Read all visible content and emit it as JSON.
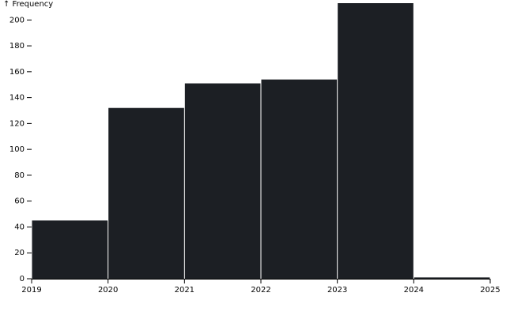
{
  "chart_data": {
    "type": "histogram",
    "y_label": "↑ Frequency",
    "bins": [
      2019,
      2020,
      2021,
      2022,
      2023,
      2024,
      2025
    ],
    "values": [
      45,
      132,
      151,
      154,
      213,
      1
    ],
    "color": "#1c1f24",
    "xlim": [
      2019,
      2025
    ],
    "xticks": [
      2019,
      2020,
      2021,
      2022,
      2023,
      2024,
      2025
    ],
    "ylim": [
      0,
      213
    ],
    "yticks": [
      0,
      20,
      40,
      60,
      80,
      100,
      120,
      140,
      160,
      180,
      200
    ]
  }
}
